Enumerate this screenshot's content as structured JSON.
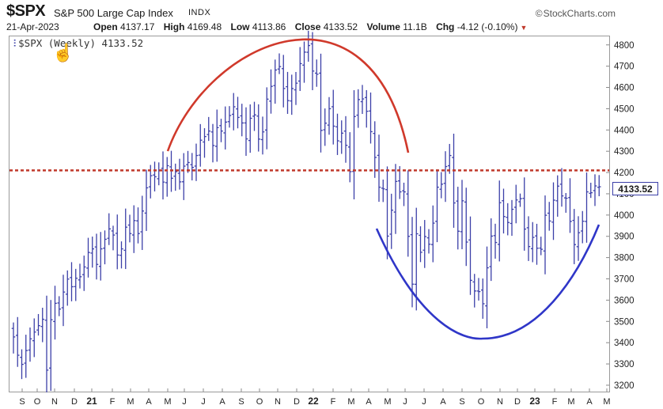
{
  "header": {
    "symbol": "$SPX",
    "full_name": "S&P 500 Large Cap Index",
    "exchange": "INDX",
    "brand": "StockCharts.com",
    "date": "21-Apr-2023",
    "open_label": "Open",
    "open": "4137.17",
    "high_label": "High",
    "high": "4169.48",
    "low_label": "Low",
    "low": "4113.86",
    "close_label": "Close",
    "close": "4133.52",
    "volume_label": "Volume",
    "volume": "11.1B",
    "chg_label": "Chg",
    "chg": "-4.12 (-0.10%)"
  },
  "legend": {
    "text": "$SPX (Weekly) 4133.52"
  },
  "price_tag": "4133.52",
  "colors": {
    "bars": "#3b3fa8",
    "top_arc": "#d0392b",
    "bottom_arc": "#2f36c8",
    "resistance": "#c0392b"
  },
  "chart_data": {
    "type": "ohlc",
    "title": "$SPX (Weekly) 4133.52",
    "x_axis_labels": [
      "S",
      "O",
      "N",
      "D",
      "21",
      "F",
      "M",
      "A",
      "M",
      "J",
      "J",
      "A",
      "S",
      "O",
      "N",
      "D",
      "22",
      "F",
      "M",
      "A",
      "M",
      "J",
      "J",
      "A",
      "S",
      "O",
      "N",
      "D",
      "23",
      "F",
      "M",
      "A",
      "M"
    ],
    "y_ticks": [
      3200,
      3300,
      3400,
      3500,
      3600,
      3700,
      3800,
      3900,
      4000,
      4100,
      4200,
      4300,
      4400,
      4500,
      4600,
      4700,
      4800
    ],
    "ylim": [
      3170,
      4840
    ],
    "start_week": "2020-09-04",
    "weekly_close": [
      3427,
      3341,
      3298,
      3363,
      3418,
      3450,
      3480,
      3510,
      3271,
      3508,
      3585,
      3558,
      3638,
      3699,
      3663,
      3703,
      3710,
      3756,
      3824,
      3841,
      3768,
      3841,
      3886,
      3935,
      3906,
      3812,
      3841,
      3943,
      3913,
      3974,
      3913,
      4019,
      4128,
      4185,
      4180,
      4211,
      4155,
      4232,
      4173,
      4204,
      4156,
      4230,
      4247,
      4224,
      4280,
      4352,
      4369,
      4395,
      4327,
      4411,
      4395,
      4437,
      4468,
      4509,
      4459,
      4433,
      4358,
      4455,
      4471,
      4357,
      4391,
      4545,
      4605,
      4682,
      4698,
      4595,
      4538,
      4595,
      4620,
      4712,
      4766,
      4797,
      4677,
      4662,
      4398,
      4432,
      4500,
      4418,
      4349,
      4385,
      4328,
      4204,
      4463,
      4543,
      4546,
      4488,
      4392,
      4271,
      4131,
      4123,
      3901,
      4023,
      4158,
      4109,
      4109,
      3900,
      3675,
      3912,
      3825,
      3899,
      3863,
      3962,
      4131,
      4145,
      4228,
      4280,
      4057,
      3924,
      4067,
      3873,
      3693,
      3643,
      3640,
      3583,
      3752,
      3901,
      3871,
      4058,
      3993,
      3965,
      4027,
      4071,
      4077,
      3934,
      3852,
      3895,
      3844,
      3839,
      3999,
      3972,
      4070,
      4136,
      4090,
      4079,
      3970,
      3861,
      3917,
      3971,
      4109,
      4105,
      4137,
      4133
    ],
    "resistance_level": 4210,
    "annotations": [
      {
        "type": "arc",
        "label": "rounded top"
      },
      {
        "type": "arc",
        "label": "rounded bottom"
      }
    ]
  }
}
